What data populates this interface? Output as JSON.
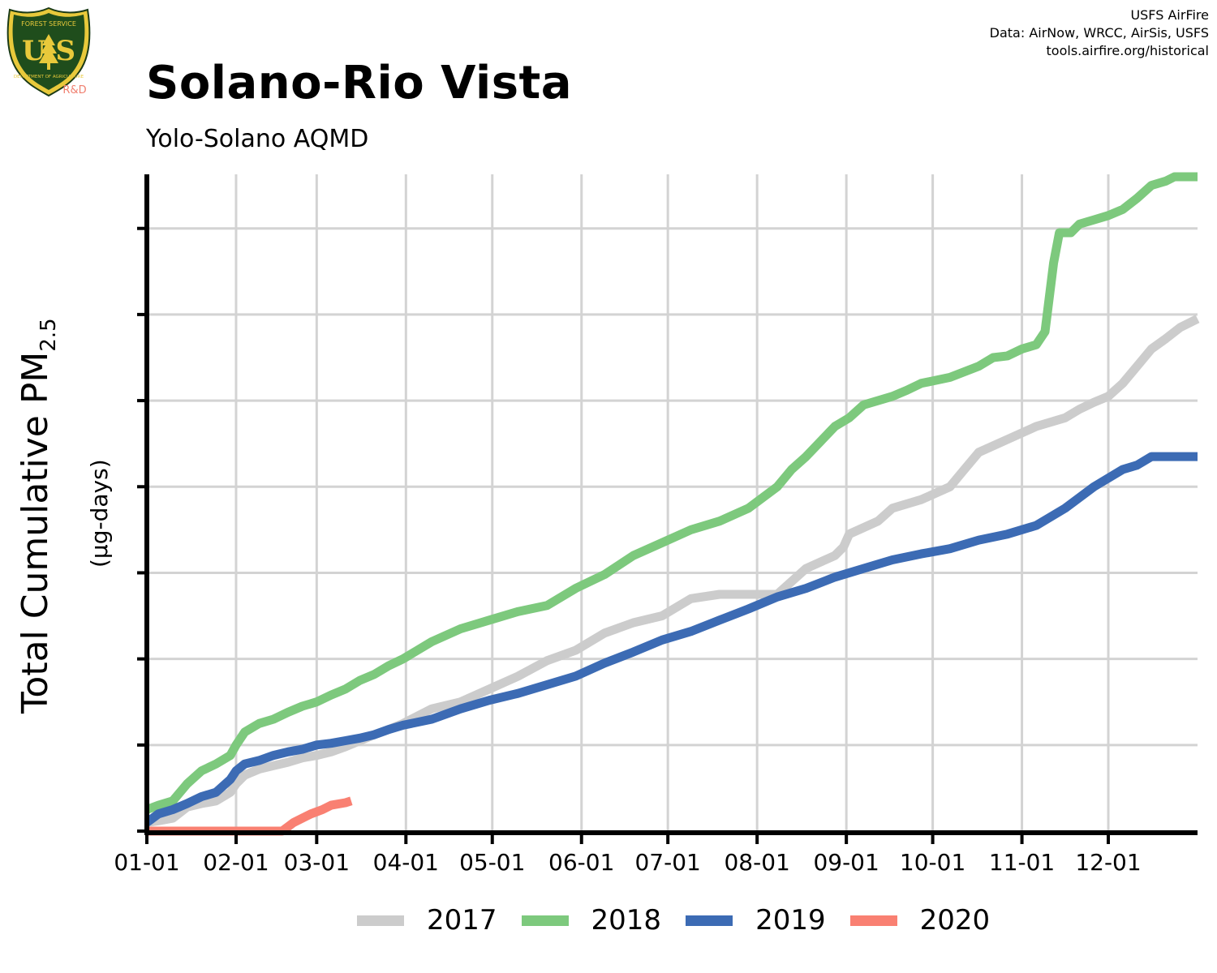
{
  "logo": {
    "top_text": "FOREST SERVICE",
    "letters": "U S",
    "bottom_text": "DEPARTMENT OF AGRICULTURE",
    "tag": "R&D"
  },
  "credits": {
    "line1": "USFS AirFire",
    "line2": "Data: AirNow, WRCC, AirSis, USFS",
    "line3": "tools.airfire.org/historical"
  },
  "colors": {
    "2017": "#cccccc",
    "2018": "#7dc97d",
    "2019": "#3c6bb4",
    "2020": "#f98072",
    "grid": "#d3d3d3",
    "axis": "#000000"
  },
  "chart_data": {
    "type": "line",
    "title": "Solano-Rio Vista",
    "subtitle": "Yolo-Solano AQMD",
    "ylabel": "Total Cumulative PM",
    "ylabel_sub": "2.5",
    "yunit": "(µg-days)",
    "x_tick_labels": [
      "01-01",
      "02-01",
      "03-01",
      "04-01",
      "05-01",
      "06-01",
      "07-01",
      "08-01",
      "09-01",
      "10-01",
      "11-01",
      "12-01"
    ],
    "x_unit": "day of year",
    "xlim": [
      1,
      366
    ],
    "ylim": [
      0,
      7.6
    ],
    "y_ticks": [
      0,
      1,
      2,
      3,
      4,
      5,
      6,
      7
    ],
    "y_tick_labels_shown": false,
    "grid": true,
    "legend_position": "bottom",
    "series": [
      {
        "name": "2017",
        "points": [
          [
            1,
            0.1
          ],
          [
            5,
            0.12
          ],
          [
            10,
            0.15
          ],
          [
            15,
            0.28
          ],
          [
            20,
            0.32
          ],
          [
            25,
            0.35
          ],
          [
            30,
            0.45
          ],
          [
            32,
            0.55
          ],
          [
            35,
            0.65
          ],
          [
            40,
            0.72
          ],
          [
            45,
            0.76
          ],
          [
            50,
            0.8
          ],
          [
            55,
            0.85
          ],
          [
            60,
            0.88
          ],
          [
            65,
            0.92
          ],
          [
            70,
            0.98
          ],
          [
            75,
            1.05
          ],
          [
            80,
            1.12
          ],
          [
            85,
            1.18
          ],
          [
            90,
            1.25
          ],
          [
            100,
            1.42
          ],
          [
            110,
            1.5
          ],
          [
            120,
            1.65
          ],
          [
            130,
            1.8
          ],
          [
            140,
            1.98
          ],
          [
            150,
            2.1
          ],
          [
            160,
            2.3
          ],
          [
            170,
            2.42
          ],
          [
            180,
            2.5
          ],
          [
            190,
            2.7
          ],
          [
            200,
            2.75
          ],
          [
            210,
            2.75
          ],
          [
            220,
            2.75
          ],
          [
            225,
            2.9
          ],
          [
            230,
            3.05
          ],
          [
            240,
            3.2
          ],
          [
            243,
            3.3
          ],
          [
            245,
            3.45
          ],
          [
            255,
            3.6
          ],
          [
            260,
            3.75
          ],
          [
            270,
            3.85
          ],
          [
            280,
            4.0
          ],
          [
            285,
            4.2
          ],
          [
            290,
            4.4
          ],
          [
            300,
            4.55
          ],
          [
            310,
            4.7
          ],
          [
            320,
            4.8
          ],
          [
            325,
            4.9
          ],
          [
            330,
            4.98
          ],
          [
            335,
            5.05
          ],
          [
            340,
            5.2
          ],
          [
            345,
            5.4
          ],
          [
            350,
            5.6
          ],
          [
            355,
            5.72
          ],
          [
            360,
            5.85
          ],
          [
            366,
            5.95
          ]
        ]
      },
      {
        "name": "2018",
        "points": [
          [
            1,
            0.25
          ],
          [
            5,
            0.3
          ],
          [
            10,
            0.35
          ],
          [
            15,
            0.55
          ],
          [
            20,
            0.7
          ],
          [
            25,
            0.78
          ],
          [
            30,
            0.88
          ],
          [
            32,
            1.0
          ],
          [
            35,
            1.15
          ],
          [
            40,
            1.25
          ],
          [
            45,
            1.3
          ],
          [
            50,
            1.38
          ],
          [
            55,
            1.45
          ],
          [
            60,
            1.5
          ],
          [
            65,
            1.58
          ],
          [
            70,
            1.65
          ],
          [
            75,
            1.75
          ],
          [
            80,
            1.82
          ],
          [
            85,
            1.92
          ],
          [
            90,
            2.0
          ],
          [
            100,
            2.2
          ],
          [
            110,
            2.35
          ],
          [
            120,
            2.45
          ],
          [
            130,
            2.55
          ],
          [
            140,
            2.62
          ],
          [
            150,
            2.82
          ],
          [
            160,
            2.98
          ],
          [
            170,
            3.2
          ],
          [
            180,
            3.35
          ],
          [
            190,
            3.5
          ],
          [
            200,
            3.6
          ],
          [
            210,
            3.75
          ],
          [
            220,
            4.0
          ],
          [
            225,
            4.2
          ],
          [
            230,
            4.35
          ],
          [
            240,
            4.7
          ],
          [
            245,
            4.8
          ],
          [
            250,
            4.95
          ],
          [
            260,
            5.05
          ],
          [
            265,
            5.12
          ],
          [
            270,
            5.2
          ],
          [
            280,
            5.27
          ],
          [
            290,
            5.4
          ],
          [
            295,
            5.5
          ],
          [
            300,
            5.52
          ],
          [
            305,
            5.6
          ],
          [
            310,
            5.65
          ],
          [
            313,
            5.8
          ],
          [
            316,
            6.6
          ],
          [
            318,
            6.95
          ],
          [
            322,
            6.95
          ],
          [
            325,
            7.05
          ],
          [
            330,
            7.1
          ],
          [
            335,
            7.15
          ],
          [
            340,
            7.22
          ],
          [
            345,
            7.35
          ],
          [
            350,
            7.5
          ],
          [
            355,
            7.55
          ],
          [
            358,
            7.6
          ],
          [
            366,
            7.6
          ]
        ]
      },
      {
        "name": "2019",
        "points": [
          [
            1,
            0.1
          ],
          [
            5,
            0.2
          ],
          [
            10,
            0.25
          ],
          [
            15,
            0.32
          ],
          [
            20,
            0.4
          ],
          [
            25,
            0.45
          ],
          [
            30,
            0.6
          ],
          [
            32,
            0.7
          ],
          [
            35,
            0.78
          ],
          [
            40,
            0.82
          ],
          [
            45,
            0.88
          ],
          [
            50,
            0.92
          ],
          [
            55,
            0.95
          ],
          [
            60,
            1.0
          ],
          [
            65,
            1.02
          ],
          [
            70,
            1.05
          ],
          [
            75,
            1.08
          ],
          [
            80,
            1.12
          ],
          [
            85,
            1.18
          ],
          [
            90,
            1.23
          ],
          [
            100,
            1.3
          ],
          [
            110,
            1.42
          ],
          [
            120,
            1.52
          ],
          [
            130,
            1.6
          ],
          [
            140,
            1.7
          ],
          [
            150,
            1.8
          ],
          [
            160,
            1.95
          ],
          [
            170,
            2.08
          ],
          [
            180,
            2.22
          ],
          [
            190,
            2.32
          ],
          [
            200,
            2.45
          ],
          [
            210,
            2.58
          ],
          [
            220,
            2.72
          ],
          [
            230,
            2.82
          ],
          [
            240,
            2.95
          ],
          [
            250,
            3.05
          ],
          [
            260,
            3.15
          ],
          [
            270,
            3.22
          ],
          [
            280,
            3.28
          ],
          [
            290,
            3.38
          ],
          [
            300,
            3.45
          ],
          [
            310,
            3.55
          ],
          [
            320,
            3.75
          ],
          [
            330,
            4.0
          ],
          [
            340,
            4.2
          ],
          [
            345,
            4.25
          ],
          [
            350,
            4.35
          ],
          [
            355,
            4.35
          ],
          [
            366,
            4.35
          ]
        ]
      },
      {
        "name": "2020",
        "points": [
          [
            1,
            0.0
          ],
          [
            20,
            0.0
          ],
          [
            40,
            0.0
          ],
          [
            48,
            0.0
          ],
          [
            50,
            0.05
          ],
          [
            52,
            0.1
          ],
          [
            55,
            0.15
          ],
          [
            58,
            0.2
          ],
          [
            62,
            0.25
          ],
          [
            65,
            0.3
          ],
          [
            70,
            0.33
          ],
          [
            72,
            0.35
          ]
        ]
      }
    ]
  }
}
